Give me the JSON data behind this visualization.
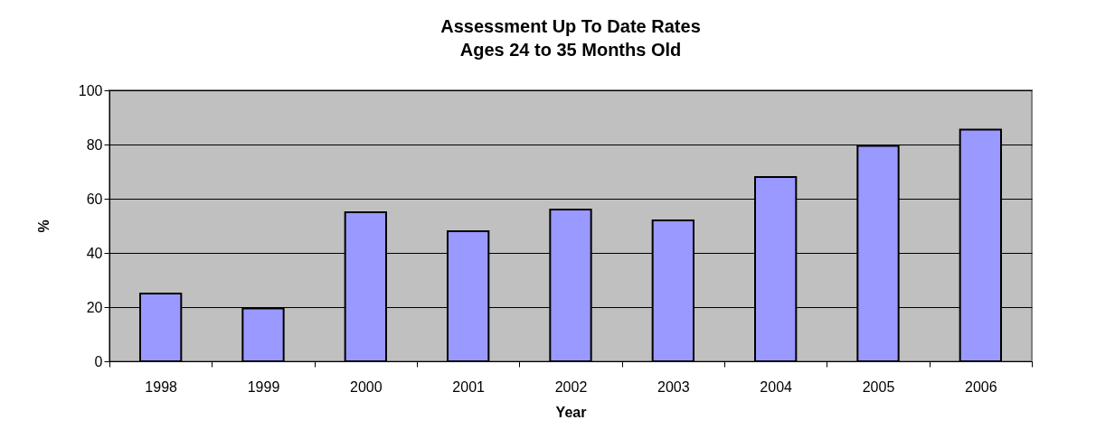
{
  "chart_data": {
    "type": "bar",
    "title": "Assessment Up To Date Rates",
    "subtitle": "Ages 24 to 35 Months Old",
    "xlabel": "Year",
    "ylabel": "%",
    "categories": [
      "1998",
      "1999",
      "2000",
      "2001",
      "2002",
      "2003",
      "2004",
      "2005",
      "2006"
    ],
    "values": [
      25,
      19.5,
      55,
      48,
      56,
      52,
      68,
      79.5,
      85.5
    ],
    "color": "#9999ff",
    "ylim": [
      0,
      100
    ],
    "yticks": [
      0,
      20,
      40,
      60,
      80,
      100
    ],
    "grid": "y"
  }
}
